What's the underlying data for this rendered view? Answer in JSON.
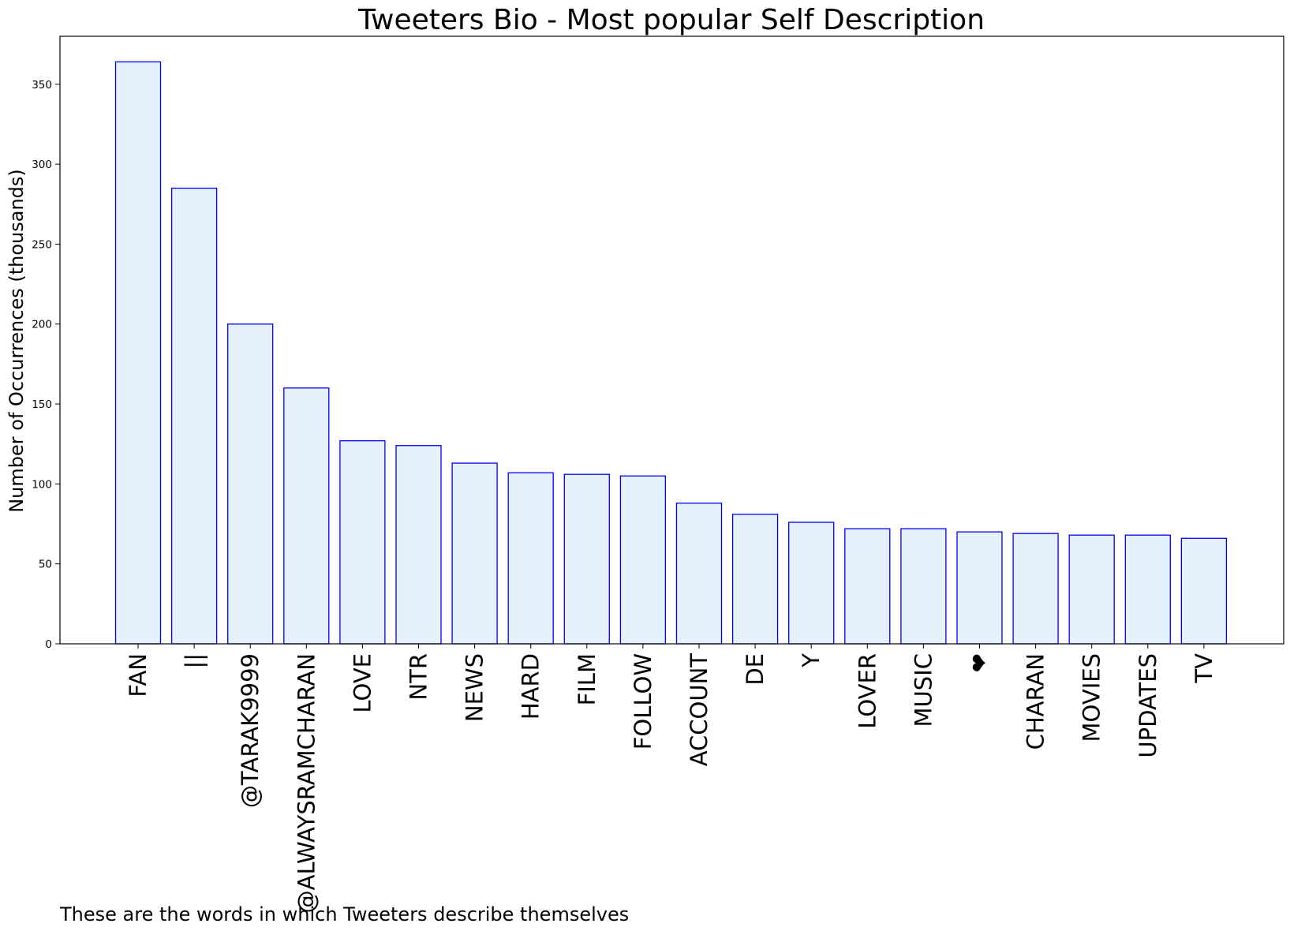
{
  "chart_data": {
    "type": "bar",
    "title": "Tweeters Bio - Most popular Self Description",
    "xlabel": "",
    "ylabel": "Number of Occurrences (thousands)",
    "caption": "These are the words in which Tweeters describe themselves",
    "categories": [
      "FAN",
      "||",
      "@TARAK9999",
      "@ALWAYSRAMCHARAN",
      "LOVE",
      "NTR",
      "NEWS",
      "HARD",
      "FILM",
      "FOLLOW",
      "ACCOUNT",
      "DE",
      "Y",
      "LOVER",
      "MUSIC",
      "❤",
      "CHARAN",
      "MOVIES",
      "UPDATES",
      "TV"
    ],
    "values": [
      364,
      285,
      200,
      160,
      127,
      124,
      113,
      107,
      106,
      105,
      88,
      81,
      76,
      72,
      72,
      70,
      69,
      68,
      68,
      66
    ],
    "ylim": [
      0,
      380
    ],
    "yticks": [
      0,
      50,
      100,
      150,
      200,
      250,
      300,
      350
    ],
    "grid": false,
    "bar_fill": "#e5f1fd",
    "bar_edge": "#0000ff"
  }
}
